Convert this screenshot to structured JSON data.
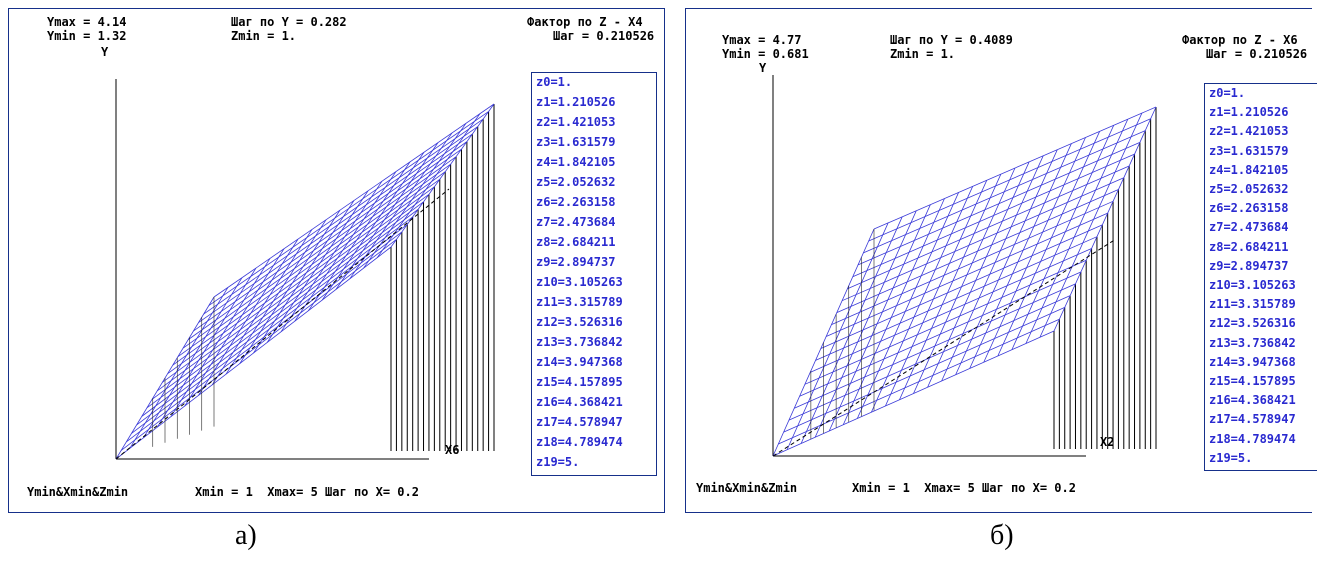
{
  "panels": [
    {
      "ymax": "Ymax = 4.14",
      "ymin": "Ymin = 1.32",
      "step_y": "Шаг по Y = 0.282",
      "zmin": "Zmin = 1.",
      "factor_z": "Фактор по Z - X4",
      "step_z": "Шаг = 0.210526",
      "y_axis": "Y",
      "x_axis": "X6",
      "origin": "Ymin&Xmin&Zmin",
      "xrange": "Xmin = 1  Xmax= 5 Шаг по X= 0.2",
      "caption": "a)"
    },
    {
      "ymax": "Ymax = 4.77",
      "ymin": "Ymin = 0.681",
      "step_y": "Шаг по Y = 0.4089",
      "zmin": "Zmin = 1.",
      "factor_z": "Фактор по Z - X6",
      "step_z": "Шаг = 0.210526",
      "y_axis": "Y",
      "x_axis": "X2",
      "origin": "Ymin&Xmin&Zmin",
      "xrange": "Xmin = 1  Xmax= 5 Шаг по X= 0.2",
      "caption": "б)"
    }
  ],
  "z_levels": [
    "z0=1.",
    "z1=1.210526",
    "z2=1.421053",
    "z3=1.631579",
    "z4=1.842105",
    "z5=2.052632",
    "z6=2.263158",
    "z7=2.473684",
    "z8=2.684211",
    "z9=2.894737",
    "z10=3.105263",
    "z11=3.315789",
    "z12=3.526316",
    "z13=3.736842",
    "z14=3.947368",
    "z15=4.157895",
    "z16=4.368421",
    "z17=4.578947",
    "z18=4.789474",
    "z19=5."
  ],
  "colors": {
    "surface": "#3a3ad8",
    "frame": "#16308a",
    "axis": "#000000",
    "label": "#2a2ad0"
  },
  "chart_data": [
    {
      "type": "surface",
      "x": [
        1,
        5
      ],
      "x_step": 0.2,
      "ylim": [
        1.32,
        4.14
      ],
      "y_step": 0.282,
      "z": [
        1,
        5
      ],
      "z_step": 0.210526
    },
    {
      "type": "surface",
      "x": [
        1,
        5
      ],
      "x_step": 0.2,
      "ylim": [
        0.681,
        4.77
      ],
      "y_step": 0.4089,
      "z": [
        1,
        5
      ],
      "z_step": 0.210526
    }
  ]
}
